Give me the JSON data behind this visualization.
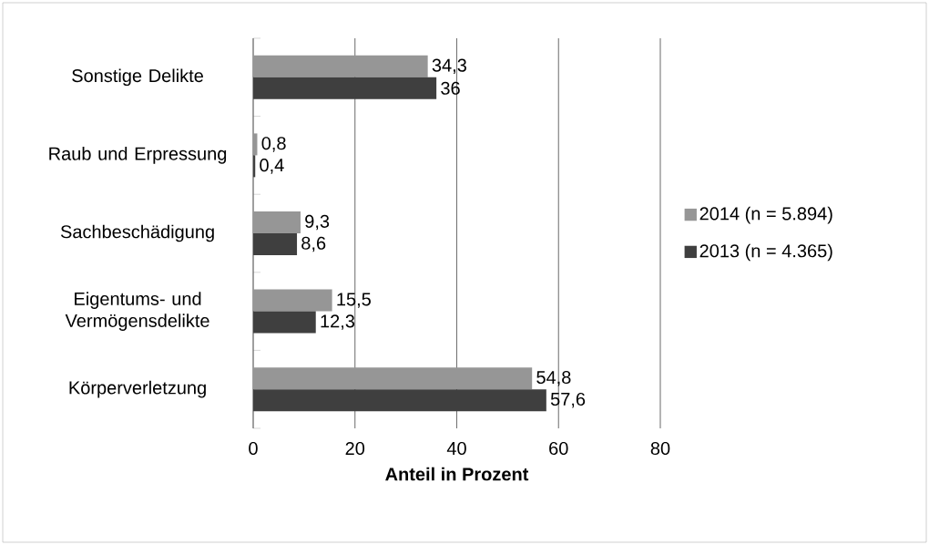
{
  "chart_data": {
    "type": "bar",
    "orientation": "horizontal",
    "xlabel": "Anteil in Prozent",
    "categories": [
      "Sonstige Delikte",
      "Raub und Erpressung",
      "Sachbeschädigung",
      "Eigentums- und Vermögensdelikte",
      "Körperverletzung"
    ],
    "series": [
      {
        "name": "2014 (n = 5.894)",
        "color": "#969696",
        "values": [
          34.3,
          0.8,
          9.3,
          15.5,
          54.8
        ],
        "value_labels": [
          "34,3",
          "0,8",
          "9,3",
          "15,5",
          "54,8"
        ]
      },
      {
        "name": "2013 (n = 4.365)",
        "color": "#3f3f3f",
        "values": [
          36,
          0.4,
          8.6,
          12.3,
          57.6
        ],
        "value_labels": [
          "36",
          "0,4",
          "8,6",
          "12,3",
          "57,6"
        ]
      }
    ],
    "xlim": [
      0,
      80
    ],
    "xticks": [
      0,
      20,
      40,
      60,
      80
    ],
    "grid": "x",
    "legend": "right"
  }
}
